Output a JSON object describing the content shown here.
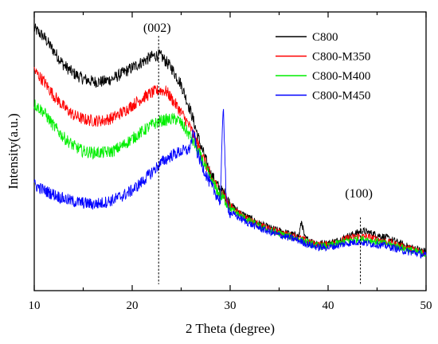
{
  "chart_data": {
    "type": "line",
    "title": "",
    "xlabel": "2 Theta (degree)",
    "ylabel": "Intensity(a.u.)",
    "xlim": [
      10,
      50
    ],
    "ylim": [
      0,
      100
    ],
    "x_ticks": [
      "10",
      "20",
      "30",
      "40",
      "50"
    ],
    "y_ticks_labeled": false,
    "legend_position": "top-right",
    "annotations": [
      {
        "text": "(002)",
        "x": 22.7
      },
      {
        "text": "(100)",
        "x": 43.3
      }
    ],
    "series": [
      {
        "name": "C800",
        "color": "#000000",
        "points": [
          [
            10,
            94
          ],
          [
            11,
            91
          ],
          [
            12,
            86
          ],
          [
            13,
            81
          ],
          [
            14,
            78
          ],
          [
            15,
            76
          ],
          [
            16,
            75
          ],
          [
            17,
            75
          ],
          [
            18,
            76
          ],
          [
            19,
            78
          ],
          [
            20,
            80
          ],
          [
            21,
            82
          ],
          [
            22,
            84
          ],
          [
            22.7,
            84.5
          ],
          [
            23,
            84
          ],
          [
            24,
            80
          ],
          [
            25,
            74
          ],
          [
            26,
            64
          ],
          [
            27,
            52
          ],
          [
            28,
            42
          ],
          [
            29,
            36
          ],
          [
            29.4,
            35
          ],
          [
            30,
            31
          ],
          [
            31,
            28
          ],
          [
            32,
            26
          ],
          [
            33,
            24
          ],
          [
            34,
            22.5
          ],
          [
            35,
            21.5
          ],
          [
            36,
            20.5
          ],
          [
            37,
            19.5
          ],
          [
            37.3,
            25
          ],
          [
            37.6,
            19
          ],
          [
            38,
            18
          ],
          [
            39,
            17
          ],
          [
            40,
            17
          ],
          [
            41,
            18
          ],
          [
            42,
            19.5
          ],
          [
            43,
            20.8
          ],
          [
            43.5,
            21.5
          ],
          [
            44,
            21
          ],
          [
            45,
            20
          ],
          [
            46,
            19
          ],
          [
            47,
            17.5
          ],
          [
            48,
            16
          ],
          [
            49,
            15
          ],
          [
            50,
            14
          ]
        ]
      },
      {
        "name": "C800-M350",
        "color": "#ff0000",
        "points": [
          [
            10,
            79
          ],
          [
            11,
            75
          ],
          [
            12,
            70
          ],
          [
            13,
            66
          ],
          [
            14,
            63
          ],
          [
            15,
            61.5
          ],
          [
            16,
            61
          ],
          [
            17,
            61
          ],
          [
            18,
            62
          ],
          [
            19,
            64
          ],
          [
            20,
            66.5
          ],
          [
            21,
            69
          ],
          [
            22,
            71
          ],
          [
            22.8,
            72
          ],
          [
            23.5,
            71.5
          ],
          [
            24,
            69
          ],
          [
            25,
            64
          ],
          [
            26,
            58
          ],
          [
            27,
            50
          ],
          [
            28,
            41
          ],
          [
            29,
            35
          ],
          [
            29.4,
            34
          ],
          [
            30,
            30.5
          ],
          [
            31,
            27.5
          ],
          [
            32,
            25.5
          ],
          [
            33,
            23.5
          ],
          [
            34,
            22
          ],
          [
            35,
            21
          ],
          [
            36,
            20
          ],
          [
            37,
            19
          ],
          [
            38,
            17.5
          ],
          [
            39,
            16.5
          ],
          [
            40,
            16.5
          ],
          [
            41,
            17.5
          ],
          [
            42,
            18.8
          ],
          [
            43,
            19.5
          ],
          [
            44,
            19.3
          ],
          [
            45,
            18.5
          ],
          [
            46,
            17.5
          ],
          [
            47,
            16.5
          ],
          [
            48,
            15.5
          ],
          [
            49,
            14.5
          ],
          [
            50,
            13.5
          ]
        ]
      },
      {
        "name": "C800-M400",
        "color": "#00ee00",
        "points": [
          [
            10,
            67
          ],
          [
            11,
            64
          ],
          [
            12,
            59
          ],
          [
            13,
            55
          ],
          [
            14,
            52
          ],
          [
            15,
            50
          ],
          [
            16,
            49.5
          ],
          [
            17,
            49.5
          ],
          [
            18,
            50
          ],
          [
            19,
            52
          ],
          [
            20,
            54.5
          ],
          [
            21,
            57
          ],
          [
            22,
            59.5
          ],
          [
            23,
            61
          ],
          [
            24,
            61.5
          ],
          [
            24.6,
            61.5
          ],
          [
            25,
            60
          ],
          [
            26,
            55
          ],
          [
            27,
            48
          ],
          [
            28,
            40
          ],
          [
            29,
            34
          ],
          [
            29.4,
            33
          ],
          [
            30,
            29.5
          ],
          [
            31,
            27
          ],
          [
            32,
            25
          ],
          [
            33,
            23
          ],
          [
            34,
            21.5
          ],
          [
            35,
            20.5
          ],
          [
            36,
            19.5
          ],
          [
            37,
            18.5
          ],
          [
            38,
            17
          ],
          [
            39,
            16
          ],
          [
            40,
            16
          ],
          [
            41,
            17
          ],
          [
            42,
            18
          ],
          [
            43,
            18.5
          ],
          [
            44,
            18.3
          ],
          [
            45,
            17.5
          ],
          [
            46,
            16.8
          ],
          [
            47,
            16
          ],
          [
            48,
            15
          ],
          [
            49,
            14
          ],
          [
            50,
            13
          ]
        ]
      },
      {
        "name": "C800-M450",
        "color": "#0000ff",
        "points": [
          [
            10,
            38
          ],
          [
            11,
            36
          ],
          [
            12,
            34.5
          ],
          [
            13,
            33
          ],
          [
            14,
            32
          ],
          [
            15,
            31.5
          ],
          [
            16,
            31
          ],
          [
            17,
            31.5
          ],
          [
            18,
            32.5
          ],
          [
            19,
            34
          ],
          [
            20,
            36
          ],
          [
            21,
            39
          ],
          [
            22,
            42.5
          ],
          [
            23,
            46
          ],
          [
            24,
            48.5
          ],
          [
            25,
            50
          ],
          [
            25.8,
            50.5
          ],
          [
            26.3,
            57
          ],
          [
            26.6,
            50
          ],
          [
            27,
            46
          ],
          [
            28,
            38
          ],
          [
            29,
            32
          ],
          [
            29.3,
            68
          ],
          [
            29.6,
            32
          ],
          [
            30,
            28
          ],
          [
            31,
            26
          ],
          [
            32,
            24
          ],
          [
            33,
            22.5
          ],
          [
            34,
            21
          ],
          [
            35,
            20
          ],
          [
            36,
            19
          ],
          [
            37,
            18
          ],
          [
            38,
            16.5
          ],
          [
            39,
            15.5
          ],
          [
            40,
            15.5
          ],
          [
            41,
            16.2
          ],
          [
            42,
            17
          ],
          [
            43,
            17.5
          ],
          [
            44,
            17
          ],
          [
            45,
            16.5
          ],
          [
            46,
            16
          ],
          [
            47,
            15
          ],
          [
            48,
            14
          ],
          [
            49,
            13.5
          ],
          [
            50,
            12.5
          ]
        ]
      }
    ]
  }
}
